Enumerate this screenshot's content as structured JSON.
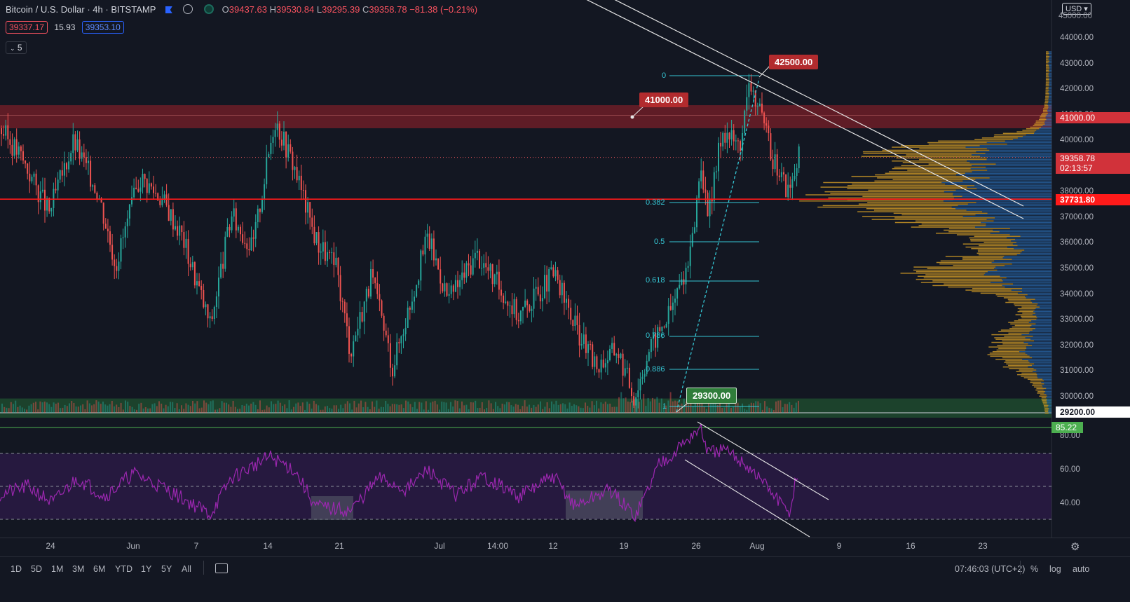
{
  "header": {
    "symbol_title": "Bitcoin / U.S. Dollar",
    "interval": "4h",
    "exchange": "BITSTAMP",
    "ohlc": {
      "o_label": "O",
      "o_value": "39437.63",
      "h_label": "H",
      "h_value": "39530.84",
      "l_label": "L",
      "l_value": "39295.39",
      "c_label": "C",
      "c_value": "39358.78",
      "change": "−81.38 (−0.21%)"
    },
    "bid": "39337.17",
    "spread": "15.93",
    "ask": "39353.10",
    "indicators_count": "5"
  },
  "currency": "USD",
  "price_axis": [
    "44000.00",
    "43000.00",
    "42000.00",
    "41000.00",
    "40000.00",
    "39000.00",
    "38000.00",
    "37000.00",
    "36000.00",
    "35000.00",
    "34000.00",
    "33000.00",
    "32000.00",
    "31000.00",
    "30000.00",
    "29200.00"
  ],
  "price_tags": {
    "current": "39358.78",
    "countdown": "02:13:57",
    "level_41000": "41000.00",
    "horizontal_line": "37731.80",
    "top": "45000.00",
    "bottom": "29200.00"
  },
  "callouts": {
    "high": "42500.00",
    "resistance": "41000.00",
    "low": "29300.00"
  },
  "fib_levels": [
    "0",
    "0.382",
    "0.5",
    "0.618",
    "0.786",
    "0.886",
    "1"
  ],
  "rsi": {
    "axis": [
      "80.00",
      "60.00",
      "40.00"
    ],
    "value": "85.22"
  },
  "time_axis": [
    "24",
    "Jun",
    "7",
    "14",
    "21",
    "Jul",
    "14:00",
    "12",
    "19",
    "26",
    "Aug",
    "9",
    "16",
    "23"
  ],
  "timeframes": [
    "1D",
    "5D",
    "1M",
    "3M",
    "6M",
    "YTD",
    "1Y",
    "5Y",
    "All"
  ],
  "footer": {
    "clock": "07:46:03 (UTC+2)",
    "percent": "%",
    "log": "log",
    "auto": "auto"
  },
  "colors": {
    "background": "#131722",
    "bull": "#26a69a",
    "bear": "#ef5350",
    "resistance_zone": "#7a1f28",
    "support_zone": "#1f4a2e",
    "red_line": "#ff1a1a",
    "fib": "#35c6d4",
    "rsi_line": "#9c27b0",
    "rsi_band": "#2a1a44",
    "volume_profile_up": "#e0a526",
    "volume_profile_down": "#2f7fd3"
  }
}
